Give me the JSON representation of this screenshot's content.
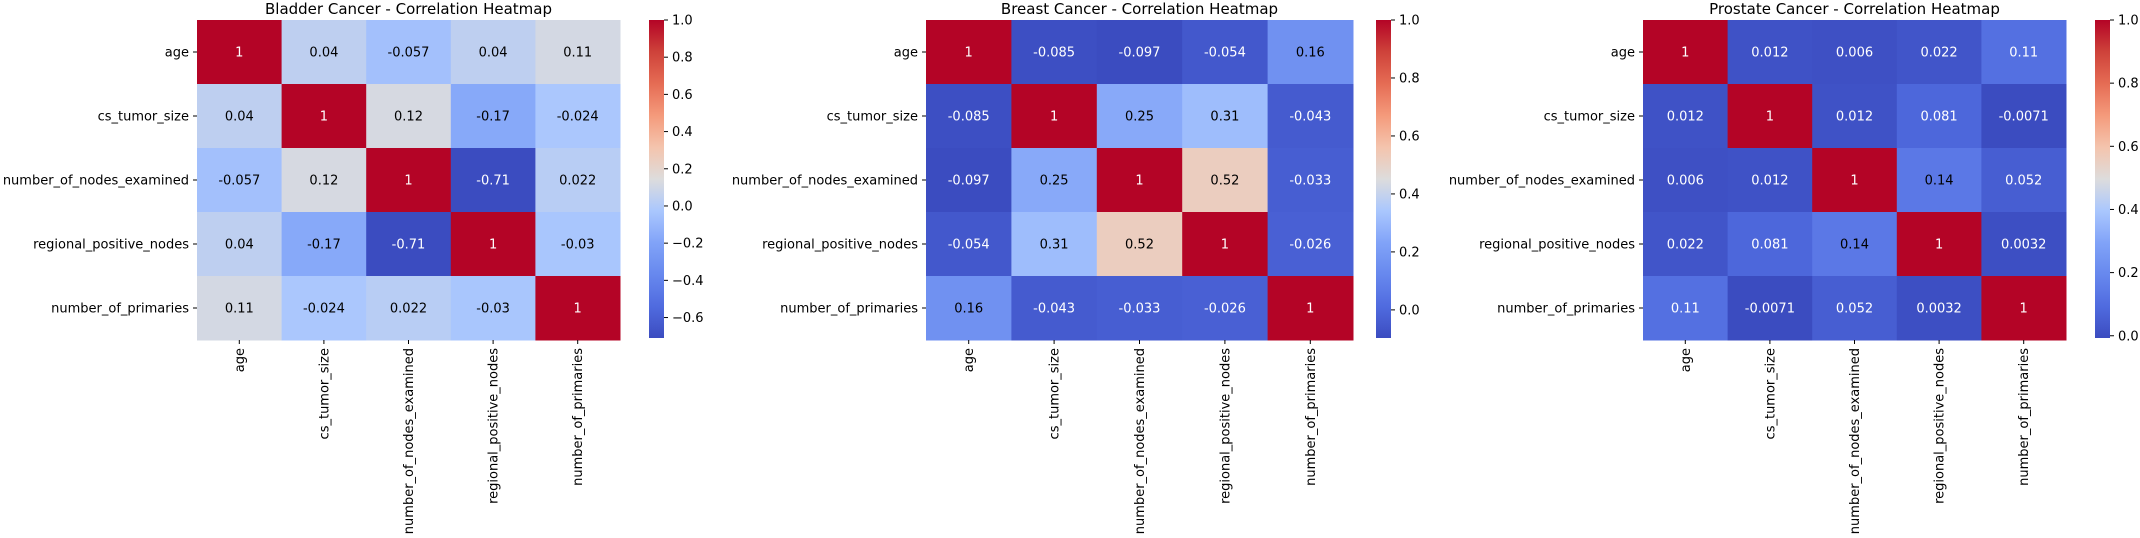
{
  "chart_data": [
    {
      "type": "heatmap",
      "title": "Bladder Cancer - Correlation Heatmap",
      "rows": [
        "age",
        "cs_tumor_size",
        "number_of_nodes_examined",
        "regional_positive_nodes",
        "number_of_primaries"
      ],
      "columns": [
        "age",
        "cs_tumor_size",
        "number_of_nodes_examined",
        "regional_positive_nodes",
        "number_of_primaries"
      ],
      "values": [
        [
          1,
          0.04,
          -0.057,
          0.04,
          0.11
        ],
        [
          0.04,
          1,
          0.12,
          -0.17,
          -0.024
        ],
        [
          -0.057,
          0.12,
          1,
          -0.71,
          0.022
        ],
        [
          0.04,
          -0.17,
          -0.71,
          1,
          -0.03
        ],
        [
          0.11,
          -0.024,
          0.022,
          -0.03,
          1
        ]
      ],
      "value_labels": [
        [
          "1",
          "0.04",
          "-0.057",
          "0.04",
          "0.11"
        ],
        [
          "0.04",
          "1",
          "0.12",
          "-0.17",
          "-0.024"
        ],
        [
          "-0.057",
          "0.12",
          "1",
          "-0.71",
          "0.022"
        ],
        [
          "0.04",
          "-0.17",
          "-0.71",
          "1",
          "-0.03"
        ],
        [
          "0.11",
          "-0.024",
          "0.022",
          "-0.03",
          "1"
        ]
      ],
      "colormap": "coolwarm",
      "color_range": [
        -0.71,
        1
      ],
      "colorbar_ticks": [
        "1.0",
        "0.8",
        "0.6",
        "0.4",
        "0.2",
        "0.0",
        "−0.2",
        "−0.4",
        "−0.6"
      ],
      "colorbar_tick_values": [
        1.0,
        0.8,
        0.6,
        0.4,
        0.2,
        0.0,
        -0.2,
        -0.4,
        -0.6
      ]
    },
    {
      "type": "heatmap",
      "title": "Breast Cancer - Correlation Heatmap",
      "rows": [
        "age",
        "cs_tumor_size",
        "number_of_nodes_examined",
        "regional_positive_nodes",
        "number_of_primaries"
      ],
      "columns": [
        "age",
        "cs_tumor_size",
        "number_of_nodes_examined",
        "regional_positive_nodes",
        "number_of_primaries"
      ],
      "values": [
        [
          1,
          -0.085,
          -0.097,
          -0.054,
          0.16
        ],
        [
          -0.085,
          1,
          0.25,
          0.31,
          -0.043
        ],
        [
          -0.097,
          0.25,
          1,
          0.52,
          -0.033
        ],
        [
          -0.054,
          0.31,
          0.52,
          1,
          -0.026
        ],
        [
          0.16,
          -0.043,
          -0.033,
          -0.026,
          1
        ]
      ],
      "value_labels": [
        [
          "1",
          "-0.085",
          "-0.097",
          "-0.054",
          "0.16"
        ],
        [
          "-0.085",
          "1",
          "0.25",
          "0.31",
          "-0.043"
        ],
        [
          "-0.097",
          "0.25",
          "1",
          "0.52",
          "-0.033"
        ],
        [
          "-0.054",
          "0.31",
          "0.52",
          "1",
          "-0.026"
        ],
        [
          "0.16",
          "-0.043",
          "-0.033",
          "-0.026",
          "1"
        ]
      ],
      "colormap": "coolwarm",
      "color_range": [
        -0.097,
        1
      ],
      "colorbar_ticks": [
        "1.0",
        "0.8",
        "0.6",
        "0.4",
        "0.2",
        "0.0"
      ],
      "colorbar_tick_values": [
        1.0,
        0.8,
        0.6,
        0.4,
        0.2,
        0.0
      ]
    },
    {
      "type": "heatmap",
      "title": "Prostate Cancer - Correlation Heatmap",
      "rows": [
        "age",
        "cs_tumor_size",
        "number_of_nodes_examined",
        "regional_positive_nodes",
        "number_of_primaries"
      ],
      "columns": [
        "age",
        "cs_tumor_size",
        "number_of_nodes_examined",
        "regional_positive_nodes",
        "number_of_primaries"
      ],
      "values": [
        [
          1,
          0.012,
          0.006,
          0.022,
          0.11
        ],
        [
          0.012,
          1,
          0.012,
          0.081,
          -0.0071
        ],
        [
          0.006,
          0.012,
          1,
          0.14,
          0.052
        ],
        [
          0.022,
          0.081,
          0.14,
          1,
          0.0032
        ],
        [
          0.11,
          -0.0071,
          0.052,
          0.0032,
          1
        ]
      ],
      "value_labels": [
        [
          "1",
          "0.012",
          "0.006",
          "0.022",
          "0.11"
        ],
        [
          "0.012",
          "1",
          "0.012",
          "0.081",
          "-0.0071"
        ],
        [
          "0.006",
          "0.012",
          "1",
          "0.14",
          "0.052"
        ],
        [
          "0.022",
          "0.081",
          "0.14",
          "1",
          "0.0032"
        ],
        [
          "0.11",
          "-0.0071",
          "0.052",
          "0.0032",
          "1"
        ]
      ],
      "colormap": "coolwarm",
      "color_range": [
        -0.0071,
        1
      ],
      "colorbar_ticks": [
        "1.0",
        "0.8",
        "0.6",
        "0.4",
        "0.2",
        "0.0"
      ],
      "colorbar_tick_values": [
        1.0,
        0.8,
        0.6,
        0.4,
        0.2,
        0.0
      ]
    }
  ]
}
